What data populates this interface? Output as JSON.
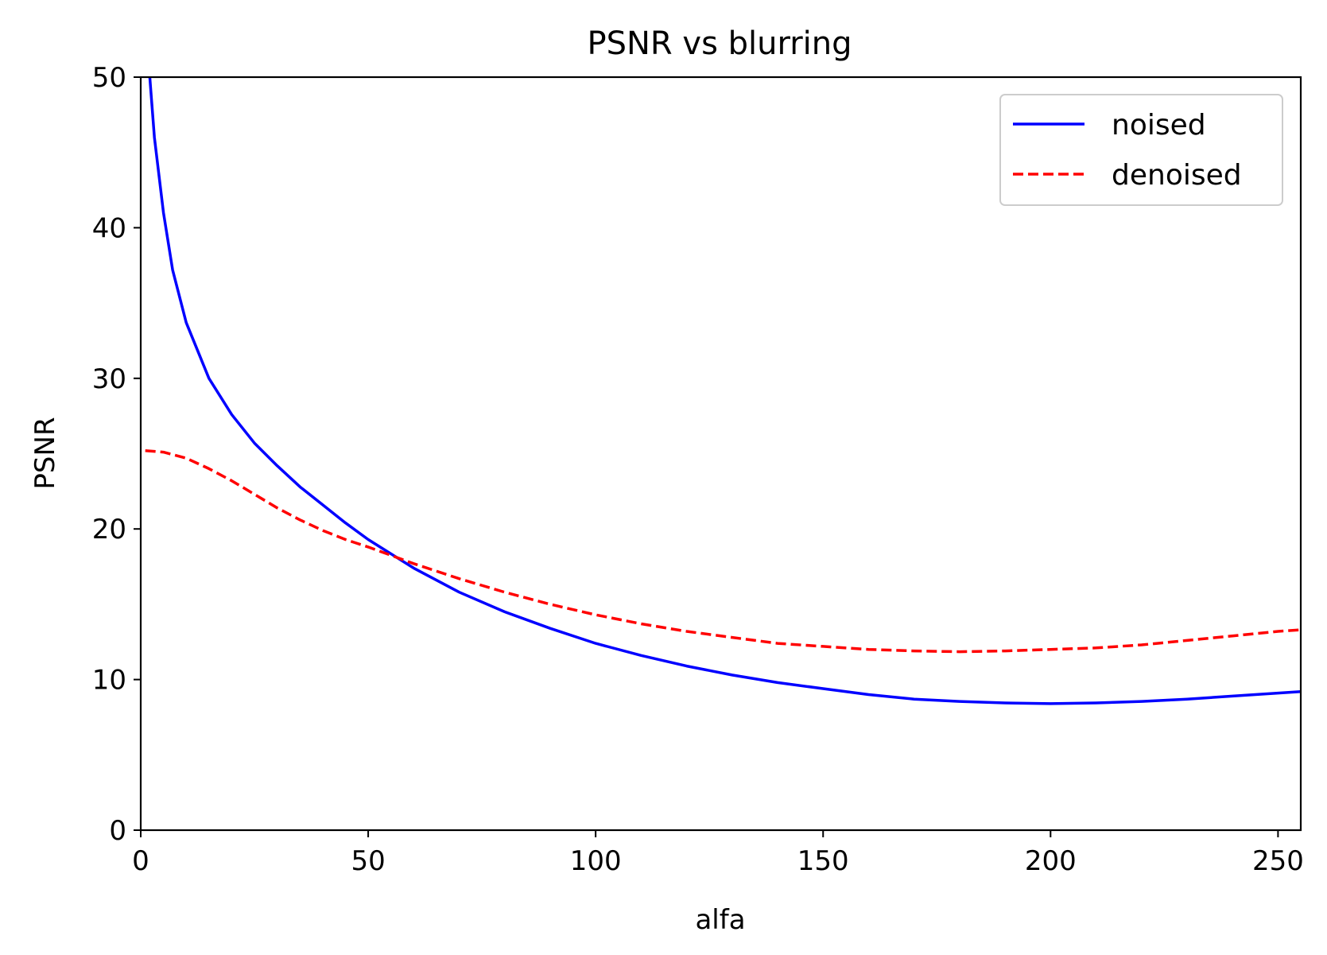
{
  "chart_data": {
    "type": "line",
    "title": "PSNR vs blurring",
    "xlabel": "alfa",
    "ylabel": "PSNR",
    "xlim": [
      0,
      255
    ],
    "ylim": [
      0,
      50
    ],
    "xticks": [
      0,
      50,
      100,
      150,
      200,
      250
    ],
    "yticks": [
      0,
      10,
      20,
      30,
      40,
      50
    ],
    "grid": false,
    "legend_position": "top-right",
    "series": [
      {
        "name": "noised",
        "color": "#0000ff",
        "style": "solid",
        "x": [
          2,
          3,
          5,
          7,
          10,
          15,
          20,
          25,
          30,
          35,
          40,
          45,
          50,
          60,
          70,
          80,
          90,
          100,
          110,
          120,
          130,
          140,
          150,
          160,
          170,
          180,
          190,
          200,
          210,
          220,
          230,
          240,
          250,
          255
        ],
        "y": [
          50,
          46,
          41,
          37.2,
          33.7,
          30.0,
          27.6,
          25.7,
          24.2,
          22.8,
          21.6,
          20.4,
          19.3,
          17.4,
          15.8,
          14.5,
          13.4,
          12.4,
          11.6,
          10.9,
          10.3,
          9.8,
          9.4,
          9.0,
          8.7,
          8.55,
          8.45,
          8.4,
          8.45,
          8.55,
          8.7,
          8.9,
          9.1,
          9.2
        ]
      },
      {
        "name": "denoised",
        "color": "#ff0000",
        "style": "dashed",
        "x": [
          1,
          5,
          10,
          15,
          20,
          25,
          30,
          35,
          40,
          45,
          50,
          60,
          70,
          80,
          90,
          100,
          110,
          120,
          130,
          140,
          150,
          160,
          170,
          180,
          190,
          200,
          210,
          220,
          230,
          240,
          250,
          255
        ],
        "y": [
          25.2,
          25.1,
          24.7,
          24.0,
          23.2,
          22.3,
          21.4,
          20.6,
          19.9,
          19.3,
          18.8,
          17.7,
          16.7,
          15.8,
          15.0,
          14.3,
          13.7,
          13.2,
          12.8,
          12.4,
          12.2,
          12.0,
          11.9,
          11.85,
          11.9,
          12.0,
          12.1,
          12.3,
          12.6,
          12.9,
          13.2,
          13.3
        ]
      }
    ]
  }
}
